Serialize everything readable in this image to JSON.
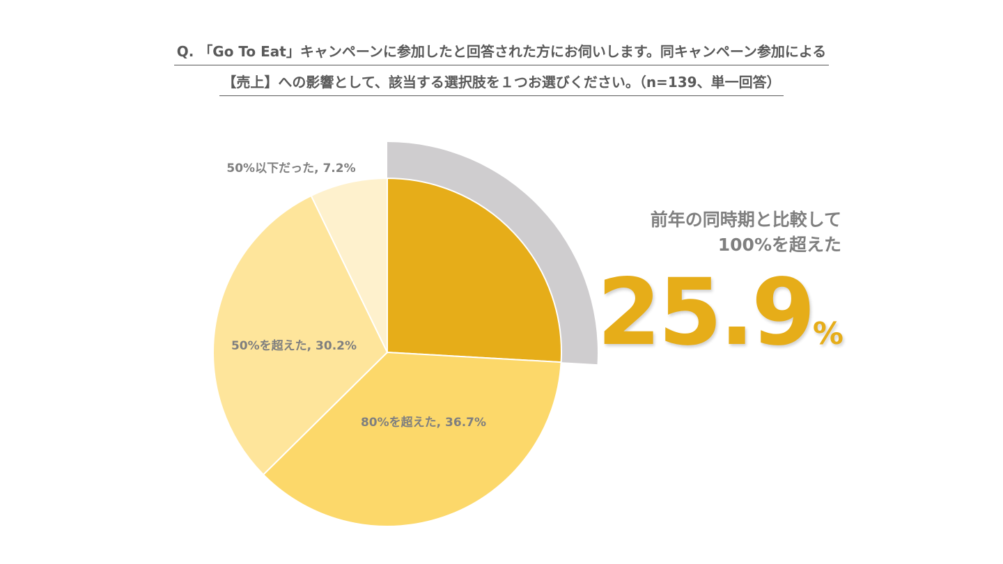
{
  "question": {
    "line1": "Q. 「Go To Eat」キャンペーンに参加したと回答された方にお伺いします。同キャンペーン参加による",
    "line2": "【売上】への影響として、該当する選択肢を１つお選びください。（n=139、単一回答）"
  },
  "highlight": {
    "caption_line1": "前年の同時期と比較して",
    "caption_line2": "100%を超えた",
    "value": "25.9",
    "unit": "%"
  },
  "colors": {
    "slice_over100": "#e6ad19",
    "slice_over80": "#fcd86a",
    "slice_over50": "#fee59b",
    "slice_under50": "#fef1cd",
    "highlight_band": "#cfcdcf",
    "label_text": "#7f7f7f",
    "accent": "#e6ad19"
  },
  "chart_data": {
    "type": "pie",
    "title": "",
    "slices": [
      {
        "label": "100%を超えた",
        "value": 25.9,
        "display_label": "",
        "exploded": true
      },
      {
        "label": "80%を超えた",
        "value": 36.7,
        "display_label": "80%を超えた, 36.7%"
      },
      {
        "label": "50%を超えた",
        "value": 30.2,
        "display_label": "50%を超えた, 30.2%"
      },
      {
        "label": "50%以下だった",
        "value": 7.2,
        "display_label": "50%以下だった, 7.2%"
      }
    ],
    "start_angle": "12 o'clock",
    "direction": "clockwise",
    "legend": "none"
  }
}
